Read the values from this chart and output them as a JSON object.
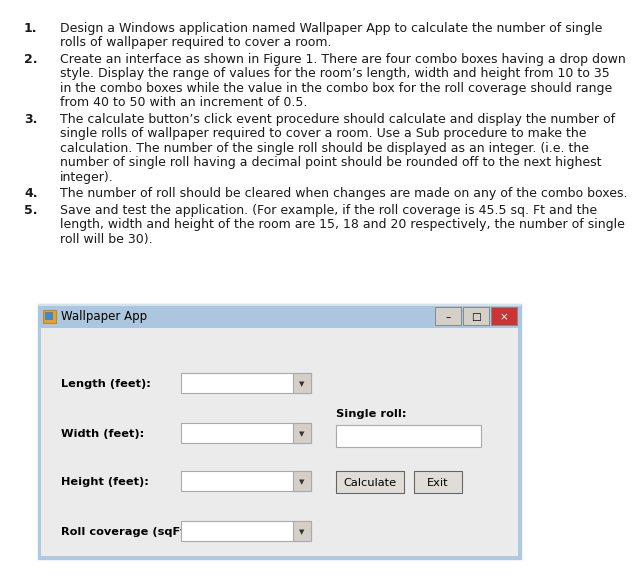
{
  "bg_color": "#ffffff",
  "text_color": "#1a1a1a",
  "font_size_body": 9.0,
  "font_size_ui": 8.2,
  "lines": [
    {
      "num": "1.",
      "text": "Design a Windows application named Wallpaper App to calculate the number of single\n    rolls of wallpaper required to cover a room."
    },
    {
      "num": "2.",
      "text": "Create an interface as shown in Figure 1. There are four combo boxes having a drop down\n    style. Display the range of values for the room’s length, width and height from 10 to 35\n    in the combo boxes while the value in the combo box for the roll coverage should range\n    from 40 to 50 with an increment of 0.5."
    },
    {
      "num": "3.",
      "text": "The calculate button’s click event procedure should calculate and display the number of\n    single rolls of wallpaper required to cover a room. Use a Sub procedure to make the\n    calculation. The number of the single roll should be displayed as an integer. (i.e. the\n    number of single roll having a decimal point should be rounded off to the next highest\n    integer)."
    },
    {
      "num": "4.",
      "text": "The number of roll should be cleared when changes are made on any of the combo boxes."
    },
    {
      "num": "5.",
      "text": "Save and test the application. (For example, if the roll coverage is 45.5 sq. Ft and the\n    length, width and height of the room are 15, 18 and 20 respectively, the number of single\n    roll will be 30)."
    }
  ],
  "win_title": "Wallpaper App",
  "win_title_color": "#adc6e0",
  "win_border_color": "#afc9e1",
  "win_body_color": "#ebebeb",
  "win_icon_color": "#e8a020",
  "labels": [
    "Length (feet):",
    "Width (feet):",
    "Height (feet):",
    "Roll coverage (sqFt):"
  ],
  "sr_label": "Single roll:",
  "btn_labels": [
    "Calculate",
    "Exit"
  ],
  "titlebar_btn_colors": [
    "#c0c0c0",
    "#c0c0c0",
    "#cc3333"
  ],
  "titlebar_btn_symbols": [
    "–",
    "□",
    "×"
  ]
}
